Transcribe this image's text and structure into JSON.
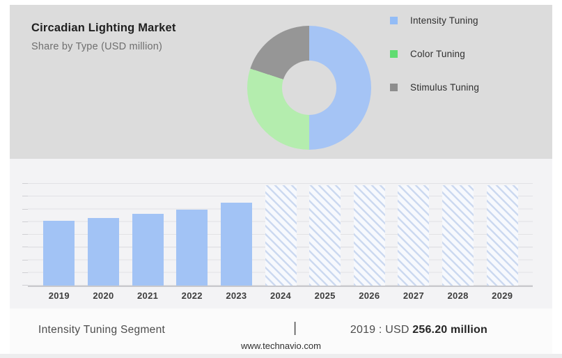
{
  "header": {
    "title": "Circadian Lighting Market",
    "subtitle": "Share by Type (USD million)"
  },
  "footer": {
    "segment_label": "Intensity Tuning Segment",
    "separator": "|",
    "value_prefix": "2019 : USD ",
    "value_bold": "256.20 million",
    "website": "www.technavio.com"
  },
  "colors": {
    "top_card_bg": "#dcdcdc",
    "chart_card_bg": "#f3f3f5",
    "footer_bg": "#fbfbfb",
    "solid_bar_blue": "#a2c3f5",
    "hatch_stripe_blue": "#ccd9f0",
    "gridline": "#e2e2e5"
  },
  "chart_data": [
    {
      "type": "pie",
      "title": "Share by Type (USD million)",
      "labels": [
        "Intensity Tuning",
        "Color Tuning",
        "Stimulus Tuning"
      ],
      "values": [
        50,
        30,
        20
      ],
      "values_unit": "percent (estimated from arc angles)",
      "slice_colors": [
        "#a5c4f5",
        "#b4edae",
        "#969696"
      ],
      "legend_colors": [
        "#93bcf6",
        "#60dc71",
        "#8d8d8d"
      ],
      "donut_hole_ratio": 0.44,
      "legend_position": "right",
      "start_angle_deg": 0,
      "direction": "clockwise"
    },
    {
      "type": "bar",
      "title": "Circadian Lighting Market by year (USD million)",
      "xlabel": "",
      "ylabel": "",
      "grid": true,
      "gridline_count": 9,
      "categories": [
        "2019",
        "2020",
        "2021",
        "2022",
        "2023",
        "2024",
        "2025",
        "2026",
        "2027",
        "2028",
        "2029"
      ],
      "labeled_value_text": "2019 : USD 256.20 million",
      "bars": [
        {
          "year": "2019",
          "kind": "actual",
          "value_usd_million": 256.2,
          "estimated": false,
          "height_pct": 63
        },
        {
          "year": "2020",
          "kind": "actual",
          "value_usd_million": 270,
          "estimated": true,
          "height_pct": 66
        },
        {
          "year": "2021",
          "kind": "actual",
          "value_usd_million": 284,
          "estimated": true,
          "height_pct": 70
        },
        {
          "year": "2022",
          "kind": "actual",
          "value_usd_million": 301,
          "estimated": true,
          "height_pct": 74
        },
        {
          "year": "2023",
          "kind": "actual",
          "value_usd_million": 329,
          "estimated": true,
          "height_pct": 81
        },
        {
          "year": "2024",
          "kind": "forecast",
          "value_usd_million": null,
          "estimated": true,
          "height_pct": 98
        },
        {
          "year": "2025",
          "kind": "forecast",
          "value_usd_million": null,
          "estimated": true,
          "height_pct": 98
        },
        {
          "year": "2026",
          "kind": "forecast",
          "value_usd_million": null,
          "estimated": true,
          "height_pct": 98
        },
        {
          "year": "2027",
          "kind": "forecast",
          "value_usd_million": null,
          "estimated": true,
          "height_pct": 98
        },
        {
          "year": "2028",
          "kind": "forecast",
          "value_usd_million": null,
          "estimated": true,
          "height_pct": 98
        },
        {
          "year": "2029",
          "kind": "forecast",
          "value_usd_million": null,
          "estimated": true,
          "height_pct": 98
        }
      ]
    }
  ]
}
